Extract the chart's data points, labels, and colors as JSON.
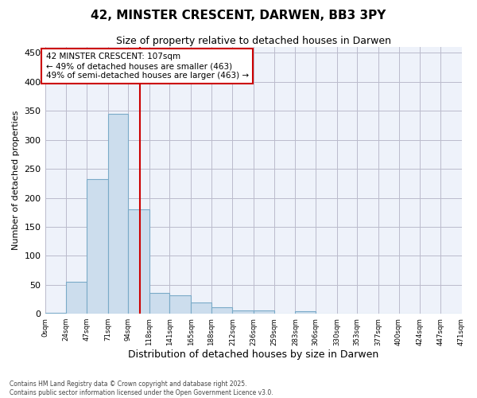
{
  "title1": "42, MINSTER CRESCENT, DARWEN, BB3 3PY",
  "title2": "Size of property relative to detached houses in Darwen",
  "xlabel": "Distribution of detached houses by size in Darwen",
  "ylabel": "Number of detached properties",
  "bin_edges": [
    0,
    24,
    47,
    71,
    94,
    118,
    141,
    165,
    188,
    212,
    236,
    259,
    283,
    306,
    330,
    353,
    377,
    400,
    424,
    447,
    471
  ],
  "bar_heights": [
    2,
    55,
    233,
    345,
    180,
    36,
    32,
    20,
    11,
    6,
    6,
    0,
    5,
    0,
    0,
    0,
    0,
    0,
    0,
    0
  ],
  "bar_color": "#ccdded",
  "bar_edgecolor": "#7aaac8",
  "grid_color": "#bbbbcc",
  "background_color": "#eef2fa",
  "redline_x": 107,
  "annotation_line1": "42 MINSTER CRESCENT: 107sqm",
  "annotation_line2": "← 49% of detached houses are smaller (463)",
  "annotation_line3": "49% of semi-detached houses are larger (463) →",
  "annotation_box_color": "#cc0000",
  "footer1": "Contains HM Land Registry data © Crown copyright and database right 2025.",
  "footer2": "Contains public sector information licensed under the Open Government Licence v3.0.",
  "ylim": [
    0,
    460
  ],
  "yticks": [
    0,
    50,
    100,
    150,
    200,
    250,
    300,
    350,
    400,
    450
  ]
}
